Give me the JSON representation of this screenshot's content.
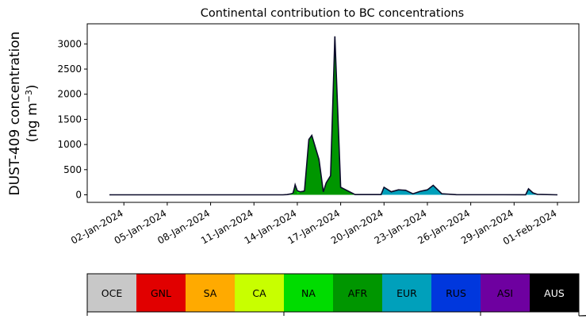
{
  "chart_data": {
    "type": "area",
    "title": "Continental contribution to BC concentrations",
    "ylabel_line1": "DUST-409 concentration",
    "ylabel_line2_prefix": "(ng m",
    "ylabel_line2_sup": "−3",
    "ylabel_line2_suffix": ")",
    "xlabel": "",
    "x_range": [
      "2024-01-01",
      "2024-02-01"
    ],
    "ylim": [
      -150,
      3400
    ],
    "y_ticks": [
      0,
      500,
      1000,
      1500,
      2000,
      2500,
      3000
    ],
    "x_ticks": [
      "02-Jan-2024",
      "05-Jan-2024",
      "08-Jan-2024",
      "11-Jan-2024",
      "14-Jan-2024",
      "17-Jan-2024",
      "20-Jan-2024",
      "23-Jan-2024",
      "26-Jan-2024",
      "29-Jan-2024",
      "01-Feb-2024"
    ],
    "grid": false,
    "series": [
      {
        "name": "NA",
        "x": [
          "2024-01-01",
          "2024-01-13",
          "2024-01-13.3",
          "2024-01-13.6",
          "2024-01-13.8",
          "2024-01-14.0",
          "2024-01-14.2",
          "2024-01-14.4",
          "2024-01-14.8",
          "2024-01-15.0",
          "2024-02-01"
        ],
        "values": [
          0,
          0,
          5,
          20,
          50,
          80,
          60,
          30,
          10,
          0,
          0
        ]
      },
      {
        "name": "AFR",
        "x": [
          "2024-01-01",
          "2024-01-13.7",
          "2024-01-13.85",
          "2024-01-14.0",
          "2024-01-14.5",
          "2024-01-14.8",
          "2024-01-15.0",
          "2024-01-15.5",
          "2024-01-15.8",
          "2024-01-16.0",
          "2024-01-16.3",
          "2024-01-16.6",
          "2024-01-17.0",
          "2024-01-18",
          "2024-02-01"
        ],
        "values": [
          0,
          0,
          200,
          20,
          80,
          1100,
          1180,
          700,
          60,
          240,
          380,
          3150,
          150,
          5,
          0
        ]
      },
      {
        "name": "EUR",
        "x": [
          "2024-01-01",
          "2024-01-19.8",
          "2024-01-20.0",
          "2024-01-20.5",
          "2024-01-21.0",
          "2024-01-21.5",
          "2024-01-22.0",
          "2024-01-22.5",
          "2024-01-23.0",
          "2024-01-23.4",
          "2024-01-24.0",
          "2024-01-25",
          "2024-01-29.8",
          "2024-01-30.0",
          "2024-01-30.3",
          "2024-01-30.6",
          "2024-02-01"
        ],
        "values": [
          0,
          0,
          150,
          60,
          100,
          90,
          20,
          70,
          100,
          190,
          20,
          0,
          0,
          120,
          40,
          10,
          0
        ]
      }
    ]
  },
  "legend": {
    "labels": [
      "OCE",
      "GNL",
      "SA",
      "CA",
      "NA",
      "AFR",
      "EUR",
      "RUS",
      "ASI",
      "AUS"
    ],
    "colors": [
      "#c8c8c8",
      "#e10000",
      "#ffaa00",
      "#c8ff00",
      "#00dc00",
      "#009600",
      "#00a0bb",
      "#0037dd",
      "#6e00a0",
      "#000000"
    ],
    "text_colors": [
      "#000000",
      "#000000",
      "#000000",
      "#000000",
      "#000000",
      "#000000",
      "#000000",
      "#000000",
      "#000000",
      "#ffffff"
    ]
  }
}
